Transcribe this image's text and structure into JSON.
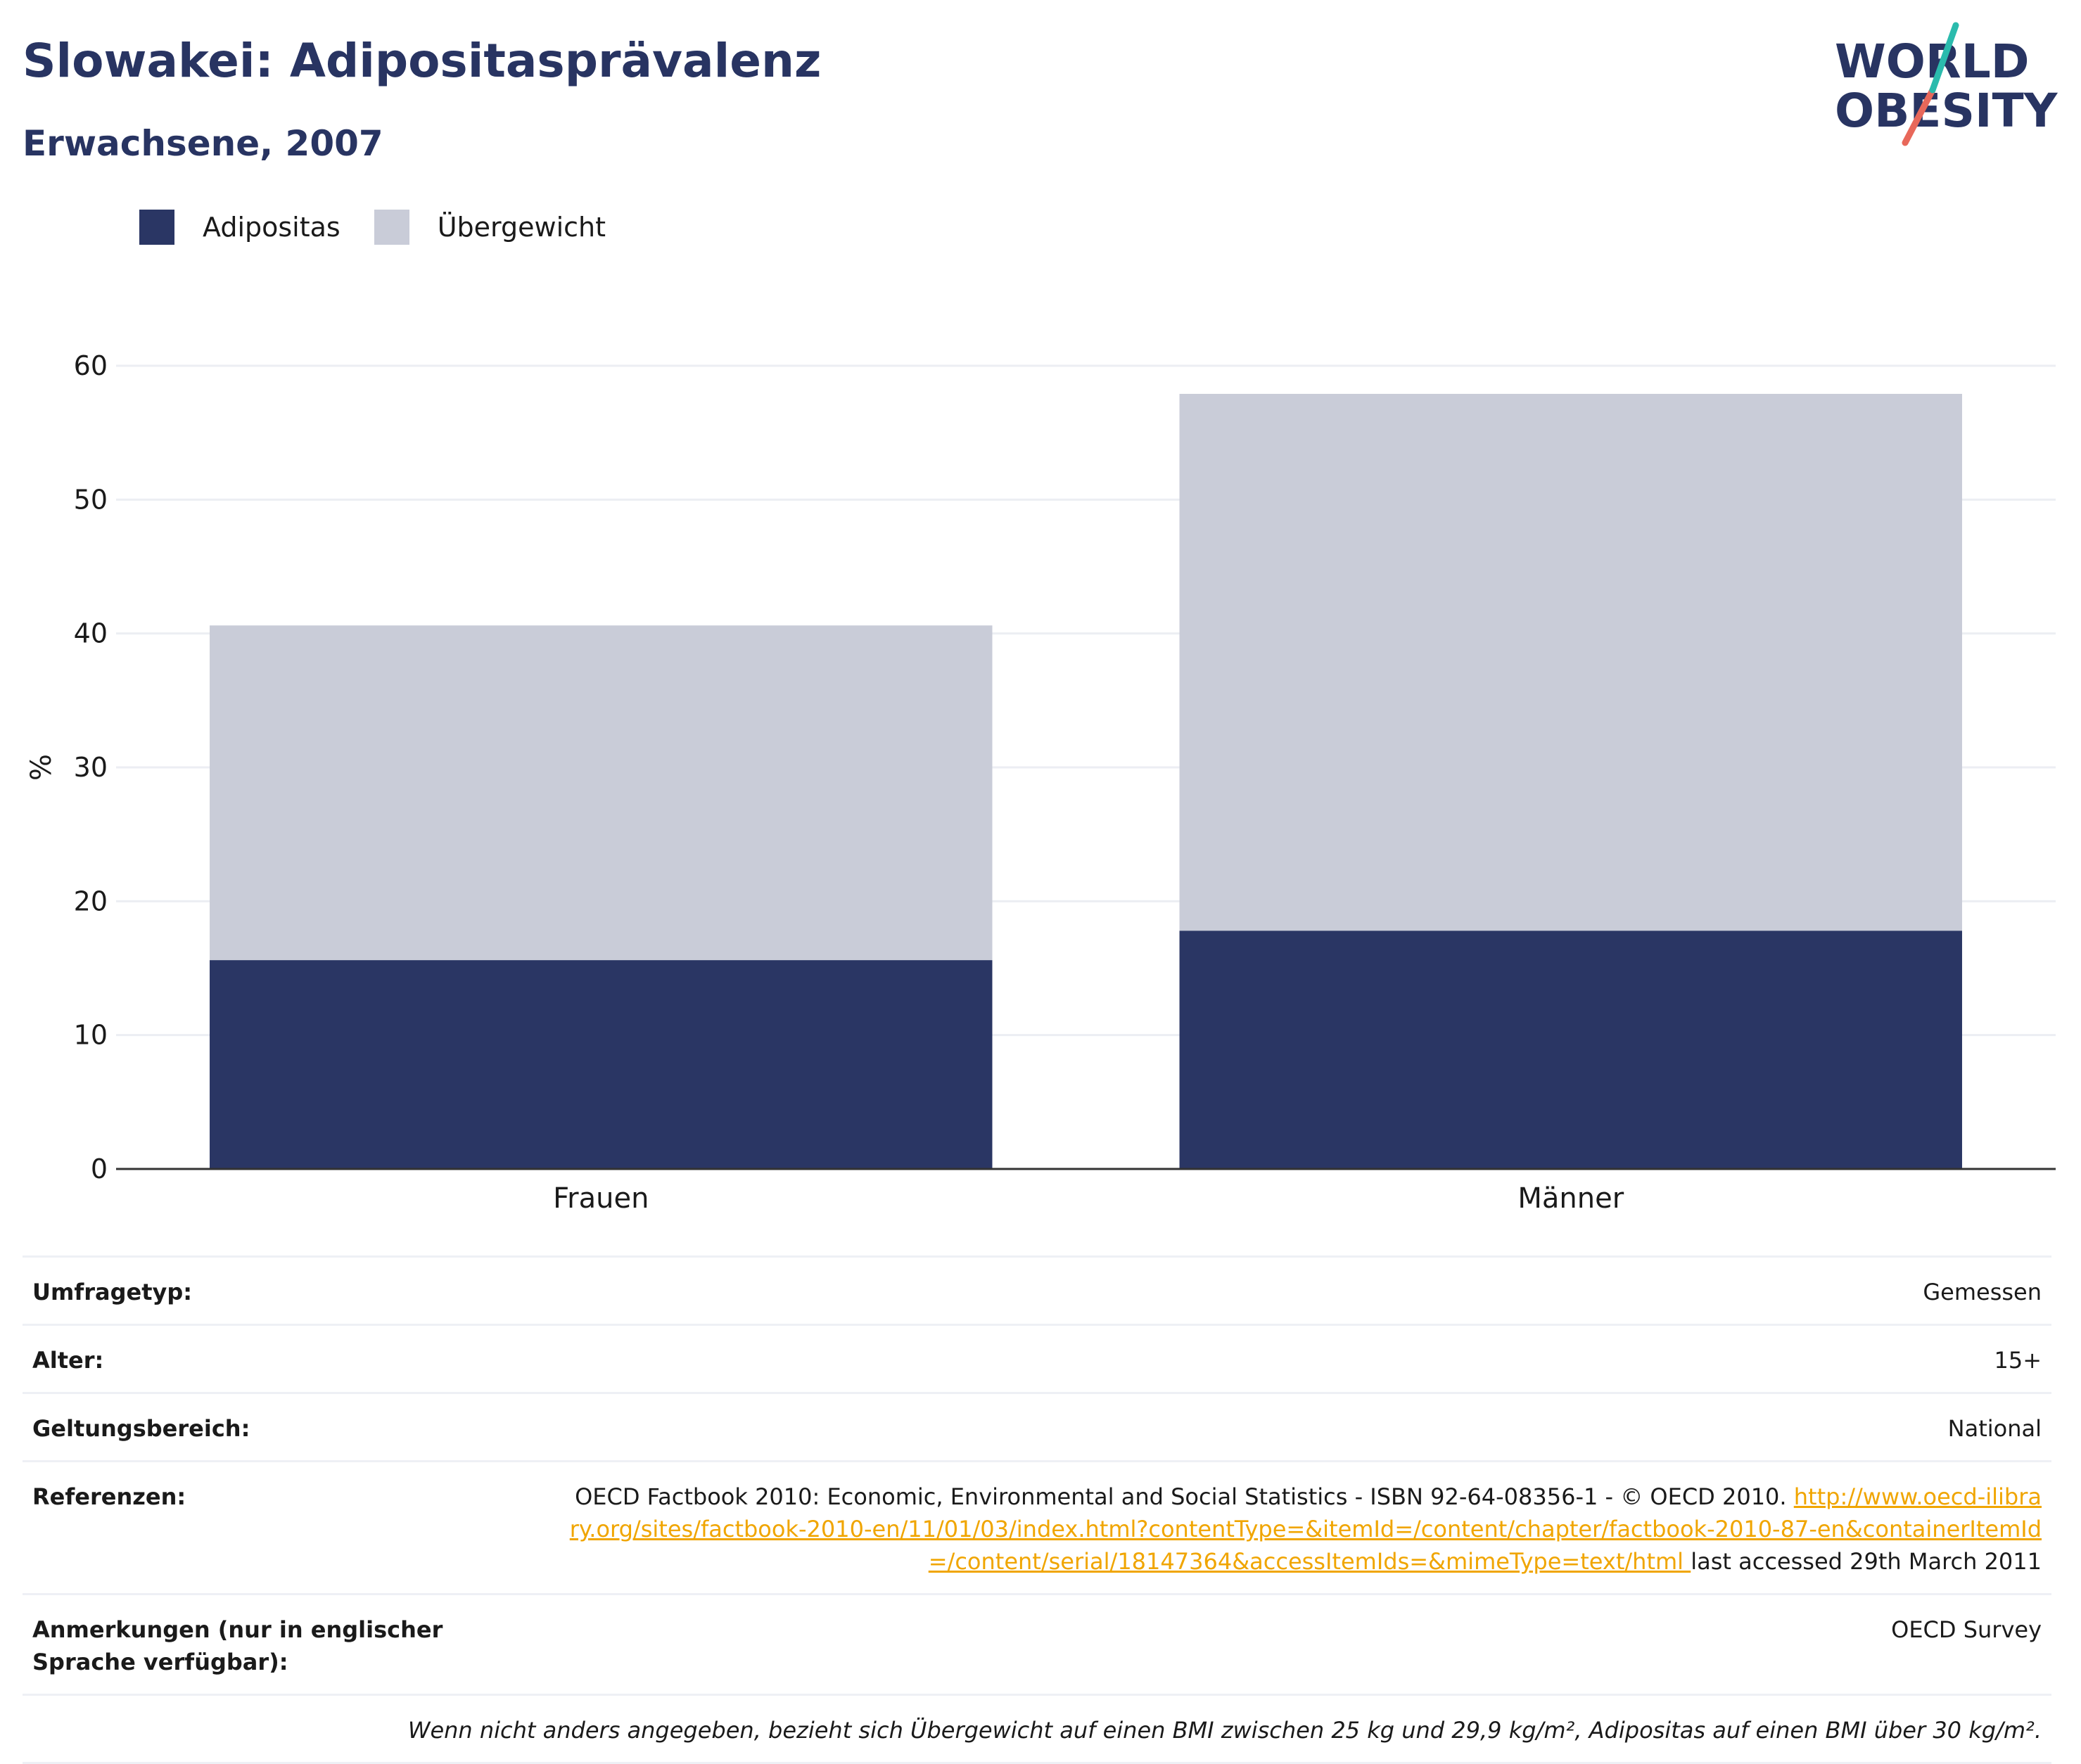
{
  "header": {
    "title": "Slowakei: Adipositasprävalenz",
    "subtitle": "Erwachsene, 2007"
  },
  "logo": {
    "line1": "WORLD",
    "line2": "OBESITY",
    "colors": {
      "text": "#283462",
      "slash_top": "#2bbbad",
      "slash_bottom": "#e8685a"
    }
  },
  "legend": [
    {
      "label": "Adipositas",
      "color": "#2a3664"
    },
    {
      "label": "Übergewicht",
      "color": "#c9ccd8"
    }
  ],
  "chart_data": {
    "type": "bar",
    "stacked": true,
    "categories": [
      "Frauen",
      "Männer"
    ],
    "series": [
      {
        "name": "Adipositas",
        "values": [
          15.6,
          17.8
        ],
        "color": "#2a3664"
      },
      {
        "name": "Übergewicht",
        "values": [
          25.0,
          40.1
        ],
        "color": "#c9ccd8"
      }
    ],
    "ylabel": "%",
    "ylim": [
      0,
      60
    ],
    "yticks": [
      0,
      10,
      20,
      30,
      40,
      50,
      60
    ],
    "grid": true,
    "legend_position": "top-left"
  },
  "meta": {
    "rows": [
      {
        "key": "Umfragetyp:",
        "value": "Gemessen"
      },
      {
        "key": "Alter:",
        "value": "15+"
      },
      {
        "key": "Geltungsbereich:",
        "value": "National"
      }
    ],
    "references": {
      "key": "Referenzen:",
      "text": "OECD Factbook 2010: Economic, Environmental and Social Statistics - ISBN 92-64-08356-1 - © OECD 2010.",
      "link": "http://www.oecd-ilibrary.org/sites/factbook-2010-en/11/01/03/index.html?contentType=&itemId=/content/chapter/factbook-2010-87-en&containerItemId=/content/serial/18147364&accessItemIds=&mimeType=text/html",
      "suffix": "last accessed 29th March 2011"
    },
    "notes": {
      "key": "Anmerkungen (nur in englischer Sprache verfügbar):",
      "value": "OECD Survey"
    },
    "footnote": "Wenn nicht anders angegeben, bezieht sich Übergewicht auf einen BMI zwischen 25 kg und 29,9 kg/m², Adipositas auf einen BMI über 30 kg/m²."
  }
}
